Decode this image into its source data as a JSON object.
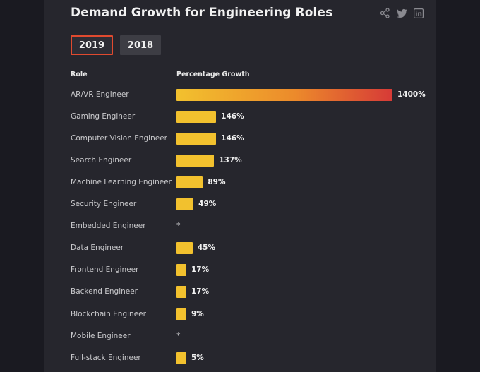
{
  "title": "Demand Growth for Engineering Roles",
  "tabs": [
    {
      "label": "2019",
      "active": true
    },
    {
      "label": "2018",
      "active": false
    }
  ],
  "icons": [
    "share-icon",
    "twitter-icon",
    "linkedin-icon"
  ],
  "colors": {
    "bar_yellow": "#f2c12e",
    "bar_gradient_end": "#d63a37",
    "active_tab_border": "#e04a2f"
  },
  "chart_data": {
    "type": "bar",
    "orientation": "horizontal",
    "xlabel": "Percentage Growth",
    "ylabel": "Role",
    "categories": [
      "AR/VR Engineer",
      "Gaming Engineer",
      "Computer Vision Engineer",
      "Search Engineer",
      "Machine Learning Engineer",
      "Security Engineer",
      "Embedded Engineer",
      "Data Engineer",
      "Frontend Engineer",
      "Backend Engineer",
      "Blockchain Engineer",
      "Mobile Engineer",
      "Full-stack Engineer"
    ],
    "values": [
      1400,
      146,
      146,
      137,
      89,
      49,
      null,
      45,
      17,
      17,
      9,
      null,
      5
    ],
    "value_labels": [
      "1400%",
      "146%",
      "146%",
      "137%",
      "89%",
      "49%",
      "*",
      "45%",
      "17%",
      "17%",
      "9%",
      "*",
      "5%"
    ]
  }
}
